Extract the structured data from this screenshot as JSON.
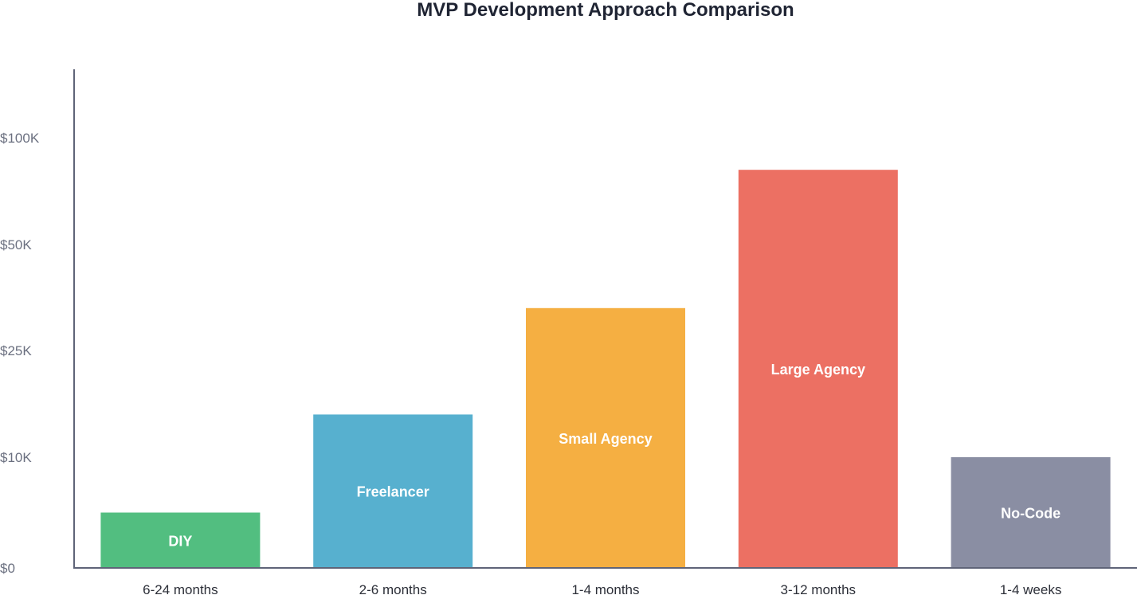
{
  "chart_data": {
    "type": "bar",
    "title": "MVP Development Approach Comparison",
    "xlabel": "",
    "ylabel": "",
    "scale": "piecewise",
    "y_ticks": [
      {
        "value": 0,
        "label": "$0"
      },
      {
        "value": 10000,
        "label": "$10K"
      },
      {
        "value": 25000,
        "label": "$25K"
      },
      {
        "value": 50000,
        "label": "$50K"
      },
      {
        "value": 100000,
        "label": "$100K"
      }
    ],
    "ylim": [
      0,
      132000
    ],
    "grid": false,
    "categories": [
      "DIY",
      "Freelancer",
      "Small Agency",
      "Large Agency",
      "No-Code"
    ],
    "timeframes": [
      "6-24 months",
      "2-6 months",
      "1-4 months",
      "3-12 months",
      "1-4 weeks"
    ],
    "values": [
      5000,
      16000,
      35000,
      85000,
      10000
    ],
    "colors": [
      "#52be80",
      "#57b0cf",
      "#f5af42",
      "#ec7063",
      "#8a8ea3"
    ]
  }
}
